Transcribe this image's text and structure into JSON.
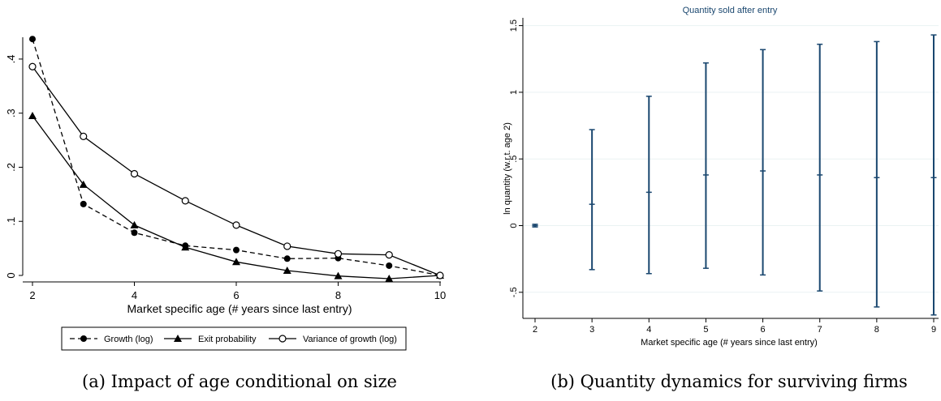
{
  "chart_data": [
    {
      "type": "line",
      "caption": "(a) Impact of age conditional on size",
      "xlabel": "Market specific age (# years since last entry)",
      "ylabel": "",
      "xlim": [
        2,
        10
      ],
      "ylim": [
        0,
        0.44
      ],
      "x_ticks": [
        "2",
        "4",
        "6",
        "8",
        "10"
      ],
      "y_ticks": [
        "0",
        ".1",
        ".2",
        ".3",
        ".4"
      ],
      "x": [
        2,
        3,
        4,
        5,
        6,
        7,
        8,
        9,
        10
      ],
      "series": [
        {
          "name": "Growth (log)",
          "values": [
            0.437,
            0.132,
            0.079,
            0.055,
            0.047,
            0.031,
            0.032,
            0.018,
            0.0
          ],
          "style": "dashed",
          "marker": "filled-circle"
        },
        {
          "name": "Exit probability",
          "values": [
            0.295,
            0.168,
            0.093,
            0.052,
            0.025,
            0.009,
            -0.001,
            -0.006,
            0.0
          ],
          "style": "solid",
          "marker": "filled-triangle"
        },
        {
          "name": "Variance of growth (log)",
          "values": [
            0.386,
            0.257,
            0.188,
            0.138,
            0.093,
            0.054,
            0.04,
            0.038,
            0.0
          ],
          "style": "solid",
          "marker": "hollow-circle"
        }
      ],
      "legend_position": "bottom"
    },
    {
      "type": "errorbar",
      "title": "Quantity sold after entry",
      "caption": "(b) Quantity dynamics for surviving firms",
      "xlabel": "Market specific age (# years since last entry)",
      "ylabel": "ln quantity (w.r.t. age 2)",
      "xlim": [
        2,
        9
      ],
      "ylim": [
        -0.7,
        1.55
      ],
      "x_ticks": [
        "2",
        "3",
        "4",
        "5",
        "6",
        "7",
        "8",
        "9"
      ],
      "y_ticks": [
        "-.5",
        "0",
        ".5",
        "1",
        "1.5"
      ],
      "x": [
        2,
        3,
        4,
        5,
        6,
        7,
        8,
        9
      ],
      "estimate": [
        0.0,
        0.16,
        0.25,
        0.38,
        0.41,
        0.38,
        0.36,
        0.36
      ],
      "lower": [
        -0.01,
        -0.33,
        -0.36,
        -0.32,
        -0.37,
        -0.49,
        -0.61,
        -0.67
      ],
      "upper": [
        0.01,
        0.72,
        0.97,
        1.22,
        1.32,
        1.36,
        1.38,
        1.43
      ],
      "color": "#1a476f",
      "grid_color": "#eaf2f3",
      "grid": true
    }
  ]
}
